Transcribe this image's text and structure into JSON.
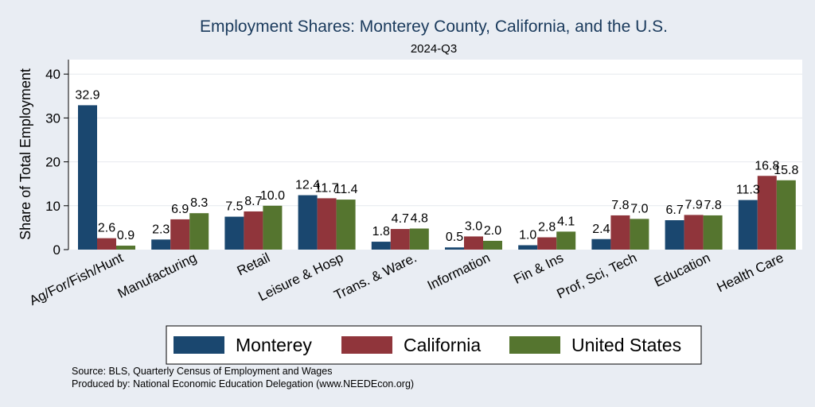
{
  "chart_data": {
    "type": "bar",
    "title": "Employment Shares: Monterey County, California, and the U.S.",
    "subtitle": "2024-Q3",
    "xlabel": "",
    "ylabel": "Share of Total Employment",
    "ylim": [
      0,
      43
    ],
    "yticks": [
      0,
      10,
      20,
      30,
      40
    ],
    "grid": true,
    "legend_position": "bottom",
    "categories": [
      "Ag/For/Fish/Hunt",
      "Manufacturing",
      "Retail",
      "Leisure & Hosp",
      "Trans. & Ware.",
      "Information",
      "Fin & Ins",
      "Prof, Sci, Tech",
      "Education",
      "Health Care"
    ],
    "series": [
      {
        "name": "Monterey",
        "color": "#1a476f",
        "values": [
          32.9,
          2.3,
          7.5,
          12.4,
          1.8,
          0.5,
          1.0,
          2.4,
          6.7,
          11.3
        ],
        "labels": [
          "32.9",
          "2.3",
          "7.5",
          "12.4",
          "1.8",
          "0.5",
          "1.0",
          "2.4",
          "6.7",
          "11.3"
        ]
      },
      {
        "name": "California",
        "color": "#90353b",
        "values": [
          2.6,
          6.9,
          8.7,
          11.7,
          4.7,
          3.0,
          2.8,
          7.8,
          7.9,
          16.8
        ],
        "labels": [
          "2.6",
          "6.9",
          "8.7",
          "11.7",
          "4.7",
          "3.0",
          "2.8",
          "7.8",
          "7.9",
          "16.8"
        ]
      },
      {
        "name": "United States",
        "color": "#55752f",
        "values": [
          0.9,
          8.3,
          10.0,
          11.4,
          4.8,
          2.0,
          4.1,
          7.0,
          7.8,
          15.8
        ],
        "labels": [
          "0.9",
          "8.3",
          "10.0",
          "11.4",
          "4.8",
          "2.0",
          "4.1",
          "7.0",
          "7.8",
          "15.8"
        ]
      }
    ],
    "notes": [
      "Source: BLS, Quarterly Census of Employment and Wages",
      "Produced by: National Economic Education Delegation (www.NEEDEcon.org)"
    ]
  }
}
